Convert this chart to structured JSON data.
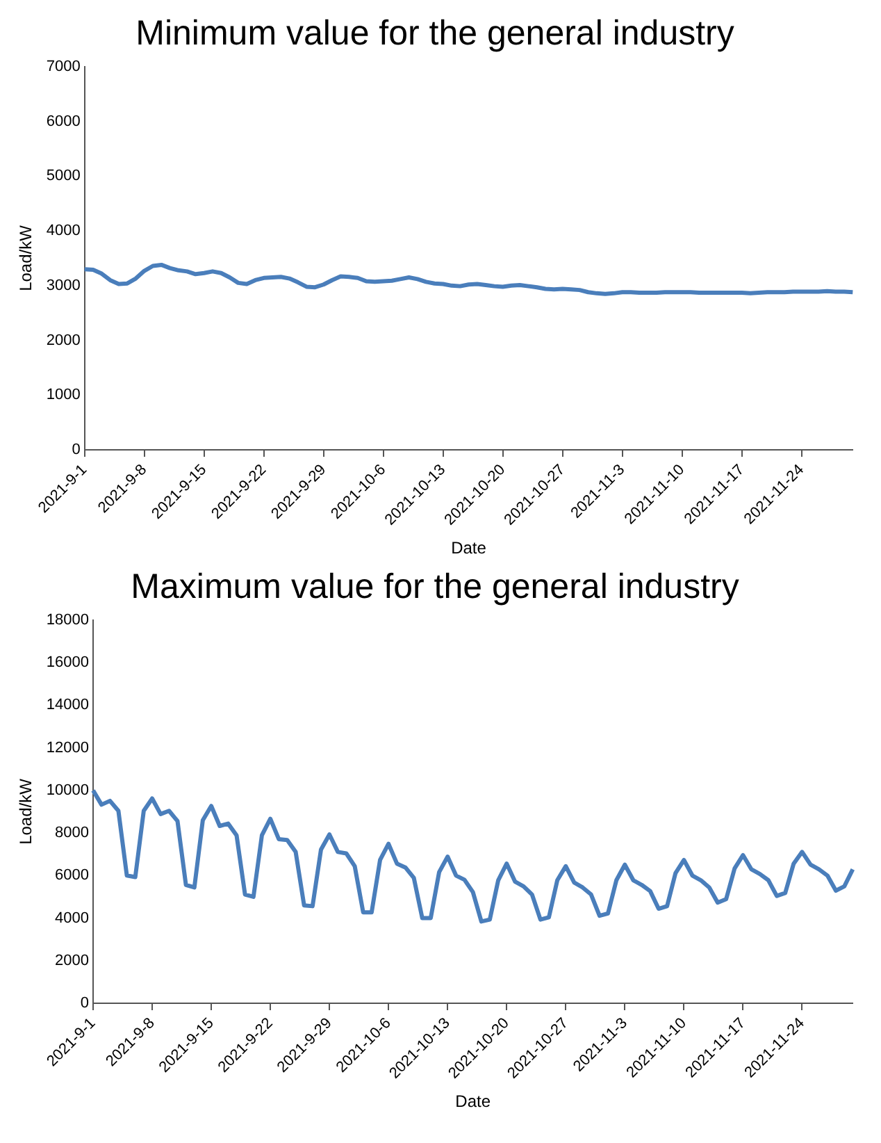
{
  "chart_data": [
    {
      "type": "line",
      "title": "Minimum value for the general industry",
      "xlabel": "Date",
      "ylabel": "Load/kW",
      "categories": [
        "2021-9-1",
        null,
        null,
        null,
        null,
        null,
        null,
        "2021-9-8",
        null,
        null,
        null,
        null,
        null,
        null,
        "2021-9-15",
        null,
        null,
        null,
        null,
        null,
        null,
        "2021-9-22",
        null,
        null,
        null,
        null,
        null,
        null,
        "2021-9-29",
        null,
        null,
        null,
        null,
        null,
        null,
        "2021-10-6",
        null,
        null,
        null,
        null,
        null,
        null,
        "2021-10-13",
        null,
        null,
        null,
        null,
        null,
        null,
        "2021-10-20",
        null,
        null,
        null,
        null,
        null,
        null,
        "2021-10-27",
        null,
        null,
        null,
        null,
        null,
        null,
        "2021-11-3",
        null,
        null,
        null,
        null,
        null,
        null,
        "2021-11-10",
        null,
        null,
        null,
        null,
        null,
        null,
        "2021-11-17",
        null,
        null,
        null,
        null,
        null,
        null,
        "2021-11-24",
        null,
        null,
        null,
        null,
        null,
        null
      ],
      "series": [
        {
          "color": "#4a7ebb",
          "values": [
            3300,
            3290,
            3220,
            3100,
            3030,
            3040,
            3130,
            3270,
            3360,
            3380,
            3320,
            3280,
            3260,
            3210,
            3230,
            3260,
            3230,
            3150,
            3050,
            3030,
            3100,
            3140,
            3150,
            3160,
            3130,
            3060,
            2980,
            2970,
            3020,
            3100,
            3170,
            3160,
            3140,
            3080,
            3070,
            3080,
            3090,
            3120,
            3150,
            3120,
            3070,
            3040,
            3030,
            3000,
            2990,
            3020,
            3030,
            3010,
            2990,
            2980,
            3000,
            3010,
            2990,
            2970,
            2940,
            2930,
            2940,
            2930,
            2920,
            2880,
            2860,
            2850,
            2860,
            2880,
            2880,
            2870,
            2870,
            2870,
            2880,
            2880,
            2880,
            2880,
            2870,
            2870,
            2870,
            2870,
            2870,
            2870,
            2860,
            2870,
            2880,
            2880,
            2880,
            2890,
            2890,
            2890,
            2890,
            2900,
            2890,
            2890,
            2880
          ]
        }
      ],
      "ylim": [
        0,
        7000
      ],
      "yticks": [
        0,
        1000,
        2000,
        3000,
        4000,
        5000,
        6000,
        7000
      ]
    },
    {
      "type": "line",
      "title": "Maximum value for the general industry",
      "xlabel": "Date",
      "ylabel": "Load/kW",
      "categories": [
        "2021-9-1",
        null,
        null,
        null,
        null,
        null,
        null,
        "2021-9-8",
        null,
        null,
        null,
        null,
        null,
        null,
        "2021-9-15",
        null,
        null,
        null,
        null,
        null,
        null,
        "2021-9-22",
        null,
        null,
        null,
        null,
        null,
        null,
        "2021-9-29",
        null,
        null,
        null,
        null,
        null,
        null,
        "2021-10-6",
        null,
        null,
        null,
        null,
        null,
        null,
        "2021-10-13",
        null,
        null,
        null,
        null,
        null,
        null,
        "2021-10-20",
        null,
        null,
        null,
        null,
        null,
        null,
        "2021-10-27",
        null,
        null,
        null,
        null,
        null,
        null,
        "2021-11-3",
        null,
        null,
        null,
        null,
        null,
        null,
        "2021-11-10",
        null,
        null,
        null,
        null,
        null,
        null,
        "2021-11-17",
        null,
        null,
        null,
        null,
        null,
        null,
        "2021-11-24",
        null,
        null,
        null,
        null,
        null,
        null
      ],
      "series": [
        {
          "color": "#4a7ebb",
          "values": [
            10000,
            9330,
            9510,
            9040,
            6000,
            5930,
            9040,
            9620,
            8890,
            9040,
            8560,
            5560,
            5440,
            8600,
            9270,
            8330,
            8440,
            7890,
            5110,
            5000,
            7890,
            8670,
            7710,
            7670,
            7110,
            4600,
            4560,
            7220,
            7930,
            7110,
            7040,
            6440,
            4270,
            4270,
            6730,
            7490,
            6560,
            6380,
            5890,
            4000,
            4000,
            6160,
            6890,
            6000,
            5800,
            5220,
            3840,
            3930,
            5780,
            6560,
            5710,
            5490,
            5110,
            3930,
            4040,
            5780,
            6440,
            5670,
            5440,
            5110,
            4110,
            4220,
            5780,
            6510,
            5780,
            5560,
            5270,
            4440,
            4560,
            6110,
            6730,
            6000,
            5780,
            5440,
            4730,
            4890,
            6330,
            6960,
            6290,
            6070,
            5780,
            5040,
            5180,
            6560,
            7110,
            6510,
            6290,
            6000,
            5290,
            5490,
            6290
          ]
        }
      ],
      "ylim": [
        0,
        18000
      ],
      "yticks": [
        0,
        2000,
        4000,
        6000,
        8000,
        10000,
        12000,
        14000,
        16000,
        18000
      ]
    }
  ]
}
